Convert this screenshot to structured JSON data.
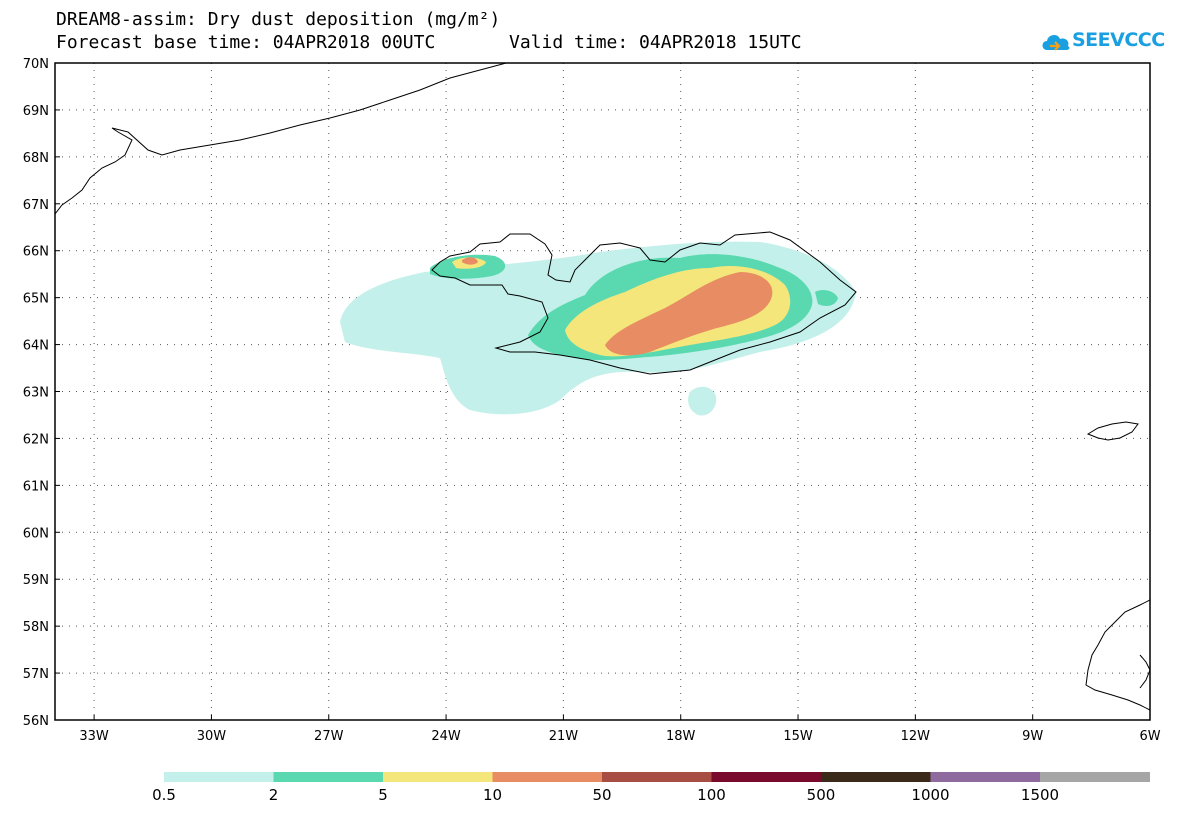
{
  "header": {
    "title_line1": "DREAM8-assim: Dry dust deposition (mg/m²)",
    "base_time": "Forecast base time: 04APR2018 00UTC",
    "valid_time": "Valid time: 04APR2018 15UTC"
  },
  "logo": {
    "text": "SEEVCCC",
    "icon": "cloud-icon",
    "color": "#1aa0e0"
  },
  "map": {
    "lat_labels": [
      "70N",
      "69N",
      "68N",
      "67N",
      "66N",
      "65N",
      "64N",
      "63N",
      "62N",
      "61N",
      "60N",
      "59N",
      "58N",
      "57N",
      "56N"
    ],
    "lon_labels": [
      "33W",
      "30W",
      "27W",
      "24W",
      "21W",
      "18W",
      "15W",
      "12W",
      "9W",
      "6W"
    ]
  },
  "legend": {
    "colors": [
      "#c3f0ea",
      "#5ad9b0",
      "#f4e67a",
      "#e88c64",
      "#a84d42",
      "#7a0a2c",
      "#3b2a1a",
      "#8f6a9e",
      "#a6a6a6"
    ],
    "labels": [
      "0.5",
      "2",
      "5",
      "10",
      "50",
      "100",
      "500",
      "1000",
      "1500"
    ]
  }
}
